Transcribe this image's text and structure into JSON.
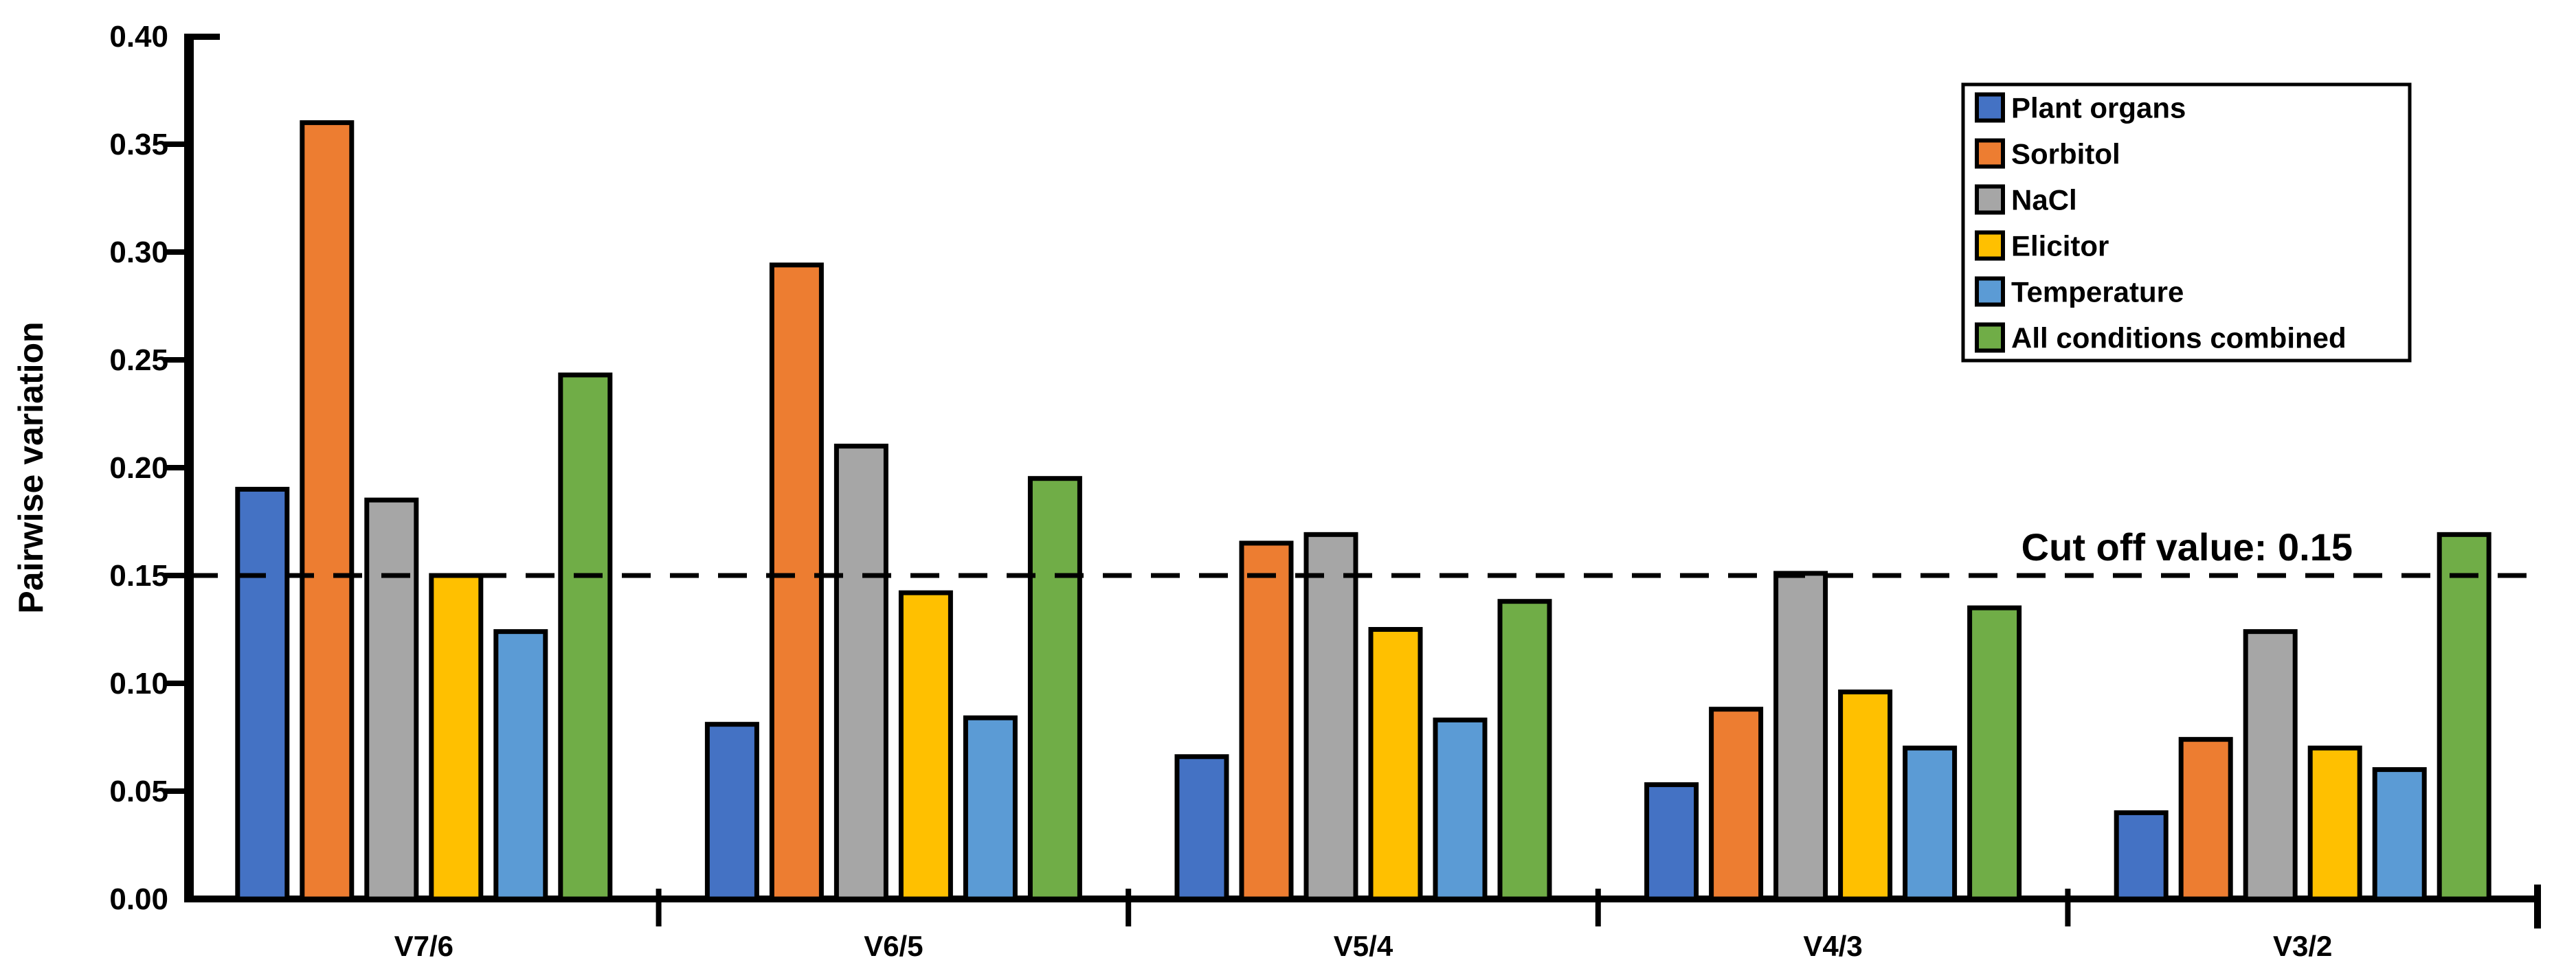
{
  "chart_data": {
    "type": "bar",
    "title": "",
    "ylabel": "Pairwise variation",
    "xlabel": "",
    "ylim": [
      0,
      0.4
    ],
    "ytick_step": 0.05,
    "yticks": [
      "0.00",
      "0.05",
      "0.10",
      "0.15",
      "0.20",
      "0.25",
      "0.30",
      "0.35",
      "0.40"
    ],
    "grid": false,
    "legend_position": "top-right",
    "categories": [
      "V7/6",
      "V6/5",
      "V5/4",
      "V4/3",
      "V3/2"
    ],
    "series": [
      {
        "name": "Plant organs",
        "color": "#4472C4",
        "values": [
          0.19,
          0.081,
          0.066,
          0.053,
          0.04
        ]
      },
      {
        "name": "Sorbitol",
        "color": "#ED7D31",
        "values": [
          0.36,
          0.294,
          0.165,
          0.088,
          0.074
        ]
      },
      {
        "name": "NaCl",
        "color": "#A6A6A6",
        "values": [
          0.185,
          0.21,
          0.169,
          0.151,
          0.124
        ]
      },
      {
        "name": "Elicitor",
        "color": "#FFC000",
        "values": [
          0.15,
          0.142,
          0.125,
          0.096,
          0.07
        ]
      },
      {
        "name": "Temperature",
        "color": "#5B9BD5",
        "values": [
          0.124,
          0.084,
          0.083,
          0.07,
          0.06
        ]
      },
      {
        "name": "All conditions combined",
        "color": "#70AD47",
        "values": [
          0.243,
          0.195,
          0.138,
          0.135,
          0.169
        ]
      }
    ],
    "cutoff": {
      "value": 0.15,
      "label": "Cut off value: 0.15"
    },
    "bar_outline_color": "#000000",
    "axis_color": "#000000"
  }
}
